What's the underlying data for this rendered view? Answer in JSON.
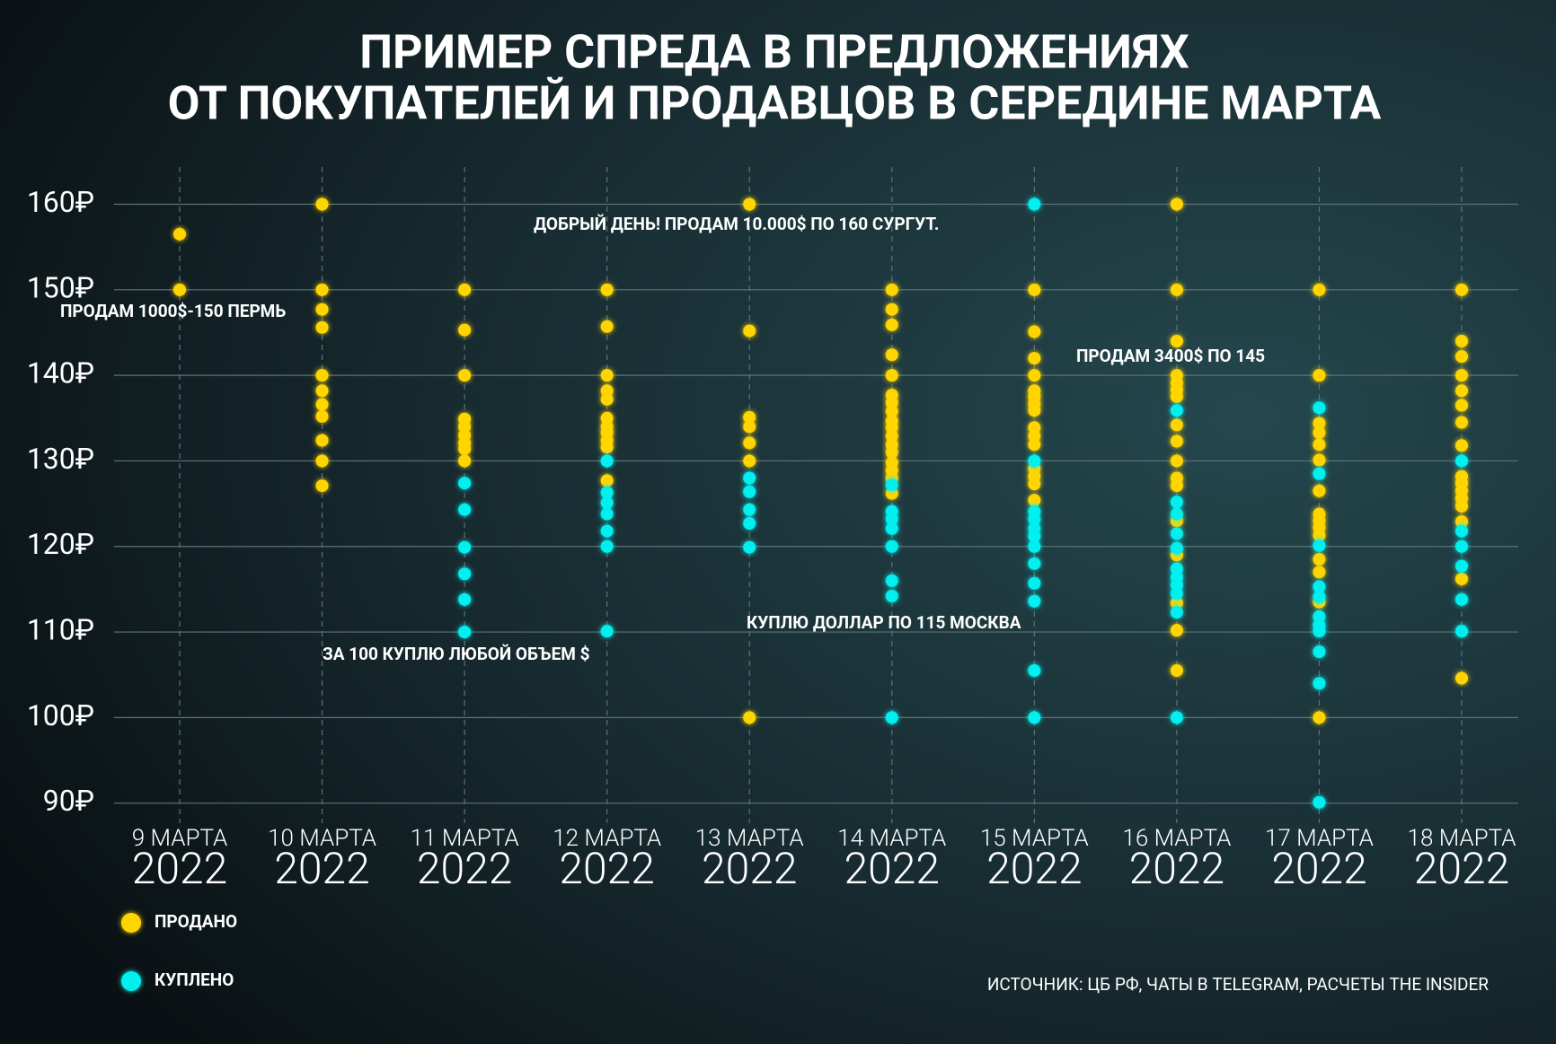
{
  "chart_data": {
    "type": "strip",
    "title": [
      "ПРИМЕР СПРЕДА В ПРЕДЛОЖЕНИЯХ",
      "ОТ ПОКУПАТЕЛЕЙ И ПРОДАВЦОВ В СЕРЕДИНЕ МАРТА"
    ],
    "categories": [
      "9 МАРТА 2022",
      "10 МАРТА 2022",
      "11 МАРТА 2022",
      "12 МАРТА 2022",
      "13 МАРТА 2022",
      "14 МАРТА 2022",
      "15 МАРТА 2022",
      "16 МАРТА 2022",
      "17 МАРТА 2022",
      "18 МАРТА 2022"
    ],
    "ylim": [
      90,
      160
    ],
    "yticks": [
      {
        "value": 90,
        "label": "90₽"
      },
      {
        "value": 100,
        "label": "100₽"
      },
      {
        "value": 110,
        "label": "110₽"
      },
      {
        "value": 120,
        "label": "120₽"
      },
      {
        "value": 130,
        "label": "130₽"
      },
      {
        "value": 140,
        "label": "140₽"
      },
      {
        "value": 150,
        "label": "150₽"
      },
      {
        "value": 160,
        "label": "160₽"
      }
    ],
    "grid": true,
    "series": [
      {
        "name": "ПРОДАНО",
        "color": "#ffd500",
        "values": [
          [
            156.5,
            150
          ],
          [
            160,
            150,
            147.7,
            145.6,
            140,
            138.2,
            136.6,
            135.2,
            132.4,
            130,
            127.1
          ],
          [
            150,
            145.3,
            140,
            134.9,
            134,
            133,
            132.1,
            131.4,
            130
          ],
          [
            150,
            145.7,
            140,
            138.2,
            137.2,
            135,
            134,
            133.3,
            132.4,
            131.6,
            127.7
          ],
          [
            160,
            145.2,
            135.1,
            134,
            132.1,
            130,
            100
          ],
          [
            150,
            147.7,
            145.9,
            142.4,
            140,
            137.7,
            136.8,
            135.8,
            134.7,
            133.9,
            132.9,
            131.9,
            131,
            129.8,
            128.9,
            128,
            126.2
          ],
          [
            150,
            145.1,
            142,
            140,
            138.2,
            137.5,
            136.7,
            135.9,
            133.9,
            132.9,
            131.9,
            129.1,
            128.2,
            127.3,
            125.4
          ],
          [
            160,
            150,
            144,
            140,
            139.1,
            138.3,
            137.5,
            134.2,
            132.3,
            130,
            128,
            127.1,
            123,
            119,
            113.4,
            110.2,
            105.5
          ],
          [
            150,
            140,
            134.4,
            133.3,
            131.9,
            130.1,
            126.5,
            123.8,
            123,
            122.2,
            121.3,
            118.5,
            117,
            113.5,
            100
          ],
          [
            150,
            144,
            142.2,
            140,
            138.2,
            136.5,
            134.5,
            131.8,
            128.2,
            127.4,
            126.5,
            125.6,
            124.7,
            122.9,
            116.2,
            104.6
          ]
        ]
      },
      {
        "name": "КУПЛЕНО",
        "color": "#00f0f0",
        "values": [
          [],
          [],
          [
            127.4,
            124.3,
            119.9,
            116.8,
            113.8,
            110
          ],
          [
            130,
            126.3,
            125.1,
            123.8,
            121.8,
            120,
            110.1
          ],
          [
            128,
            126.4,
            124.3,
            122.7,
            119.9
          ],
          [
            127.2,
            124.1,
            123.2,
            122.1,
            120,
            116,
            114.2,
            100
          ],
          [
            160,
            130,
            124.1,
            123.2,
            122.1,
            121.2,
            120,
            118,
            115.7,
            113.6,
            105.5,
            100
          ],
          [
            135.9,
            125.2,
            123.8,
            121.5,
            119.8,
            117.4,
            116.4,
            115.5,
            114.5,
            112.3,
            100
          ],
          [
            136.2,
            128.5,
            120.1,
            115.3,
            114.1,
            111.8,
            110.8,
            110.1,
            107.7,
            104,
            90.1
          ],
          [
            130,
            121.8,
            120,
            117.7,
            113.8,
            110.1
          ]
        ]
      }
    ],
    "annotations": [
      "ДОБРЫЙ ДЕНЬ! ПРОДАМ 10.000$ ПО 160 СУРГУТ.",
      "ПРОДАМ 1000$-150 ПЕРМЬ",
      "ПРОДАМ 3400$ ПО 145",
      "ЗА 100 КУПЛЮ ЛЮБОЙ ОБЪЕМ $",
      "КУПЛЮ ДОЛЛАР ПО 115 МОСКВА"
    ],
    "source": "ИСТОЧНИК: ЦБ РФ, ЧАТЫ В TELEGRAM, РАСЧЕТЫ THE INSIDER"
  }
}
